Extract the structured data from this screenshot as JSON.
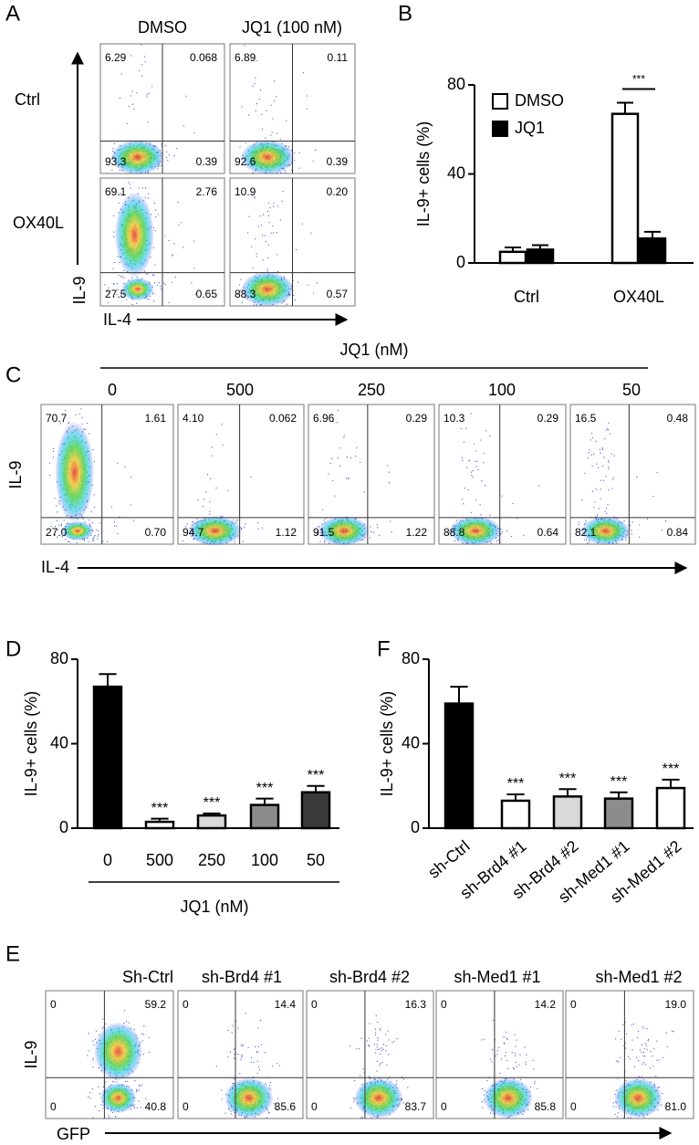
{
  "chart_data": [
    {
      "type": "flow",
      "panel": "A",
      "columns": [
        "DMSO",
        "JQ1 (100 nM)"
      ],
      "rows": [
        "Ctrl",
        "OX40L"
      ],
      "x_label": "IL-4",
      "y_label": "IL-9",
      "plots": [
        {
          "values": [
            6.29,
            0.068,
            93.3,
            0.39
          ],
          "value_labels": [
            "6.29",
            "0.068",
            "93.3",
            "0.39"
          ]
        },
        {
          "values": [
            6.89,
            0.11,
            92.6,
            0.39
          ],
          "value_labels": [
            "6.89",
            "0.11",
            "92.6",
            "0.39"
          ]
        },
        {
          "values": [
            69.1,
            2.76,
            27.5,
            0.65
          ],
          "value_labels": [
            "69.1",
            "2.76",
            "27.5",
            "0.65"
          ]
        },
        {
          "values": [
            10.9,
            0.2,
            88.3,
            0.57
          ],
          "value_labels": [
            "10.9",
            "0.20",
            "88.3",
            "0.57"
          ]
        }
      ]
    },
    {
      "type": "bar",
      "panel": "B",
      "y_label": "IL-9+ cells (%)",
      "categories": [
        "Ctrl",
        "OX40L"
      ],
      "series": [
        {
          "name": "DMSO",
          "color": "#ffffff",
          "values": [
            5,
            67
          ],
          "errors": [
            2,
            5
          ]
        },
        {
          "name": "JQ1",
          "color": "#000000",
          "values": [
            6,
            11
          ],
          "errors": [
            2,
            3
          ]
        }
      ],
      "annotations": [
        null,
        "***"
      ],
      "ylim": [
        0,
        80
      ],
      "yticks": [
        0,
        40,
        80
      ]
    },
    {
      "type": "flow",
      "panel": "C",
      "title": "JQ1 (nM)",
      "columns": [
        "0",
        "500",
        "250",
        "100",
        "50"
      ],
      "x_label": "IL-4",
      "y_label": "IL-9",
      "plots": [
        {
          "values": [
            70.7,
            1.61,
            27.0,
            0.7
          ],
          "value_labels": [
            "70.7",
            "1.61",
            "27.0",
            "0.70"
          ]
        },
        {
          "values": [
            4.1,
            0.062,
            94.7,
            1.12
          ],
          "value_labels": [
            "4.10",
            "0.062",
            "94.7",
            "1.12"
          ]
        },
        {
          "values": [
            6.96,
            0.29,
            91.5,
            1.22
          ],
          "value_labels": [
            "6.96",
            "0.29",
            "91.5",
            "1.22"
          ]
        },
        {
          "values": [
            10.3,
            0.29,
            88.8,
            0.64
          ],
          "value_labels": [
            "10.3",
            "0.29",
            "88.8",
            "0.64"
          ]
        },
        {
          "values": [
            16.5,
            0.48,
            82.1,
            0.84
          ],
          "value_labels": [
            "16.5",
            "0.48",
            "82.1",
            "0.84"
          ]
        }
      ]
    },
    {
      "type": "bar",
      "panel": "D",
      "y_label": "IL-9+ cells (%)",
      "x_label": "JQ1 (nM)",
      "categories": [
        "0",
        "500",
        "250",
        "100",
        "50"
      ],
      "values": [
        67,
        3,
        6,
        11,
        17
      ],
      "errors": [
        6,
        1.5,
        1,
        3,
        3
      ],
      "colors": [
        "#000000",
        "#ffffff",
        "#d9d9d9",
        "#8c8c8c",
        "#3a3a3a"
      ],
      "annotations": [
        null,
        "***",
        "***",
        "***",
        "***"
      ],
      "ylim": [
        0,
        80
      ],
      "yticks": [
        0,
        40,
        80
      ]
    },
    {
      "type": "bar",
      "panel": "F",
      "y_label": "IL-9+ cells (%)",
      "categories": [
        "sh-Ctrl",
        "sh-Brd4 #1",
        "sh-Brd4 #2",
        "sh-Med1 #1",
        "sh-Med1 #2"
      ],
      "values": [
        59,
        13,
        15,
        14,
        19
      ],
      "errors": [
        8,
        3,
        3.5,
        3,
        4
      ],
      "colors": [
        "#000000",
        "#ffffff",
        "#d9d9d9",
        "#8c8c8c",
        "#ffffff"
      ],
      "annotations": [
        null,
        "***",
        "***",
        "***",
        "***"
      ],
      "ylim": [
        0,
        80
      ],
      "yticks": [
        0,
        40,
        80
      ]
    },
    {
      "type": "flow",
      "panel": "E",
      "columns": [
        "Sh-Ctrl",
        "sh-Brd4 #1",
        "sh-Brd4 #2",
        "sh-Med1 #1",
        "sh-Med1 #2"
      ],
      "x_label": "GFP",
      "y_label": "IL-9",
      "plots": [
        {
          "values": [
            0,
            59.2,
            0,
            40.8
          ],
          "value_labels": [
            "0",
            "59.2",
            "0",
            "40.8"
          ]
        },
        {
          "values": [
            0,
            14.4,
            0,
            85.6
          ],
          "value_labels": [
            "0",
            "14.4",
            "0",
            "85.6"
          ]
        },
        {
          "values": [
            0,
            16.3,
            0,
            83.7
          ],
          "value_labels": [
            "0",
            "16.3",
            "0",
            "83.7"
          ]
        },
        {
          "values": [
            0,
            14.2,
            0,
            85.8
          ],
          "value_labels": [
            "0",
            "14.2",
            "0",
            "85.8"
          ]
        },
        {
          "values": [
            0,
            19.0,
            0,
            81.0
          ],
          "value_labels": [
            "0",
            "19.0",
            "0",
            "81.0"
          ]
        }
      ]
    }
  ]
}
